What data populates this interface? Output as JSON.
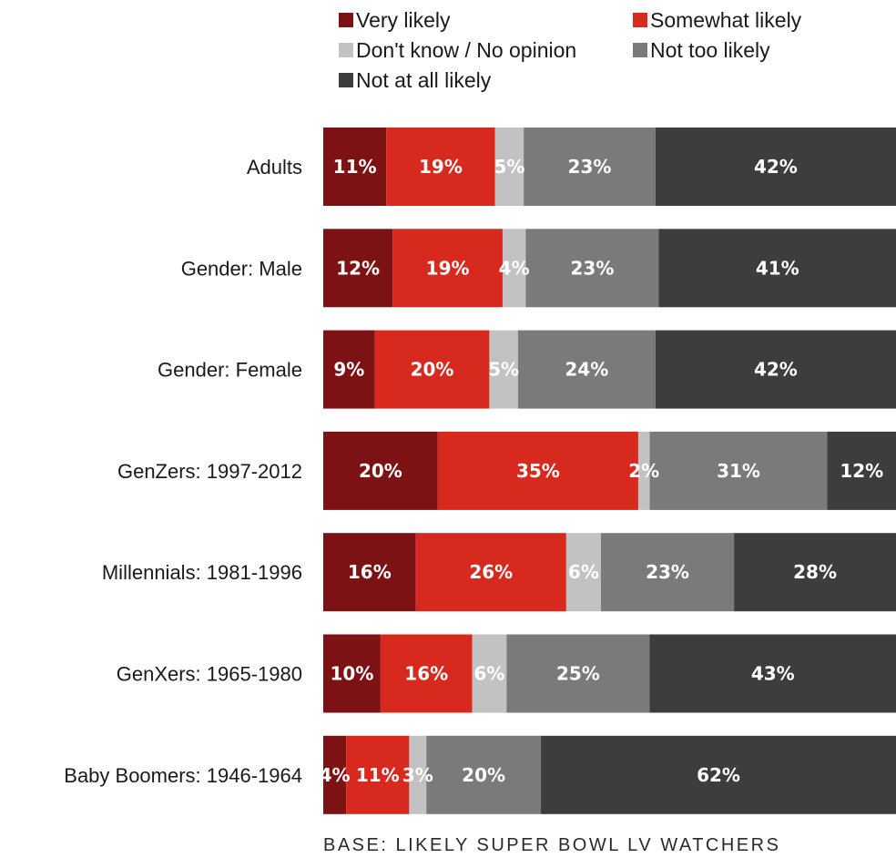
{
  "chart_data": {
    "type": "bar",
    "orientation": "horizontal",
    "stacked": "percent",
    "categories": [
      "Adults",
      "Gender: Male",
      "Gender: Female",
      "GenZers: 1997-2012",
      "Millennials: 1981-1996",
      "GenXers: 1965-1980",
      "Baby Boomers: 1946-1964"
    ],
    "series": [
      {
        "name": "Very likely",
        "color": "#7d1214",
        "values": [
          11,
          12,
          9,
          20,
          16,
          10,
          4
        ]
      },
      {
        "name": "Somewhat likely",
        "color": "#d8291e",
        "values": [
          19,
          19,
          20,
          35,
          26,
          16,
          11
        ]
      },
      {
        "name": "Don't know / No opinion",
        "color": "#c2c2c2",
        "values": [
          5,
          4,
          5,
          2,
          6,
          6,
          3
        ]
      },
      {
        "name": "Not too likely",
        "color": "#7a7a7a",
        "values": [
          23,
          23,
          24,
          31,
          23,
          25,
          20
        ]
      },
      {
        "name": "Not at all likely",
        "color": "#3d3d3d",
        "values": [
          42,
          41,
          42,
          12,
          28,
          43,
          62
        ]
      }
    ],
    "value_suffix": "%",
    "legend_position": "top",
    "grid": false,
    "footnote": "BASE: LIKELY SUPER BOWL LV WATCHERS"
  }
}
